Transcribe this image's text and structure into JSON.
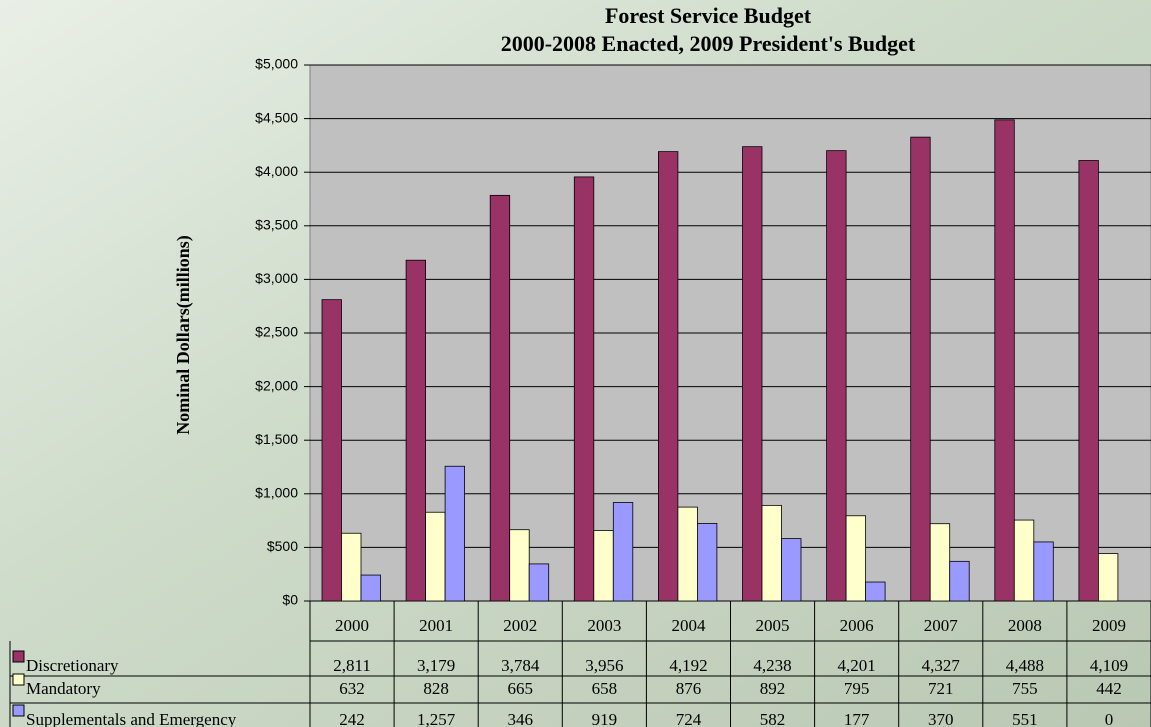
{
  "chart_data": {
    "type": "bar",
    "title": "Forest Service Budget",
    "subtitle": "2000-2008 Enacted, 2009 President's Budget",
    "y_label": "Nominal Dollars(millions)",
    "categories": [
      "2000",
      "2001",
      "2002",
      "2003",
      "2004",
      "2005",
      "2006",
      "2007",
      "2008",
      "2009"
    ],
    "series": [
      {
        "name": "Discretionary",
        "color": "#993366",
        "values": [
          2811,
          3179,
          3784,
          3956,
          4192,
          4238,
          4201,
          4327,
          4488,
          4109
        ],
        "value_labels": [
          "2,811",
          "3,179",
          "3,784",
          "3,956",
          "4,192",
          "4,238",
          "4,201",
          "4,327",
          "4,488",
          "4,109"
        ]
      },
      {
        "name": "Mandatory",
        "color": "#ffffcc",
        "values": [
          632,
          828,
          665,
          658,
          876,
          892,
          795,
          721,
          755,
          442
        ]
      },
      {
        "name": "Supplementals and Emergency",
        "color": "#9999ff",
        "values": [
          242,
          1257,
          346,
          919,
          724,
          582,
          177,
          370,
          551,
          0
        ],
        "value_labels": [
          "242",
          "1,257",
          "346",
          "919",
          "724",
          "582",
          "177",
          "370",
          "551",
          "0"
        ]
      }
    ],
    "ylim": [
      0,
      5000
    ],
    "yticks": [
      {
        "value": 0,
        "label": "$0"
      },
      {
        "value": 500,
        "label": "$500"
      },
      {
        "value": 1000,
        "label": "$1,000"
      },
      {
        "value": 1500,
        "label": "$1,500"
      },
      {
        "value": 2000,
        "label": "$2,000"
      },
      {
        "value": 2500,
        "label": "$2,500"
      },
      {
        "value": 3000,
        "label": "$3,000"
      },
      {
        "value": 3500,
        "label": "$3,500"
      },
      {
        "value": 4000,
        "label": "$4,000"
      },
      {
        "value": 4500,
        "label": "$4,500"
      },
      {
        "value": 5000,
        "label": "$5,000"
      }
    ],
    "grid": true
  }
}
